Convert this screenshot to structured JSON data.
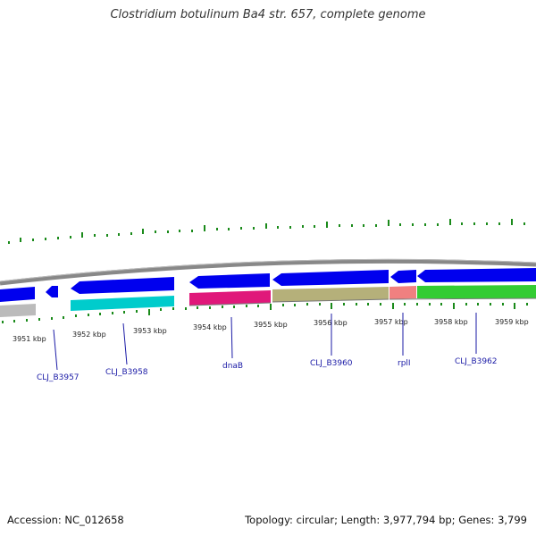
{
  "title": "Clostridium botulinum Ba4 str. 657, complete genome",
  "footer": {
    "accession": "Accession: NC_012658",
    "summary": "Topology: circular; Length: 3,977,794 bp; Genes: 3,799"
  },
  "colors": {
    "backbone": "#888888",
    "cds_forward": "#0000ee",
    "gene_reverse": "#00cccc",
    "rrna_like": "#e0187a",
    "olive": "#b5b07a",
    "salmon": "#f08080",
    "green": "#33cc33",
    "gray": "#bbbbbb",
    "tick": "#1a8a1a",
    "label_line": "#1a1aa6"
  },
  "map": {
    "ticks": [
      "3951 kbp",
      "3952 kbp",
      "3953 kbp",
      "3954 kbp",
      "3955 kbp",
      "3956 kbp",
      "3957 kbp",
      "3958 kbp",
      "3959 kbp"
    ],
    "gene_labels": [
      "CLJ_B3957",
      "CLJ_B3958",
      "dnaB",
      "CLJ_B3960",
      "rplI",
      "CLJ_B3962"
    ]
  }
}
